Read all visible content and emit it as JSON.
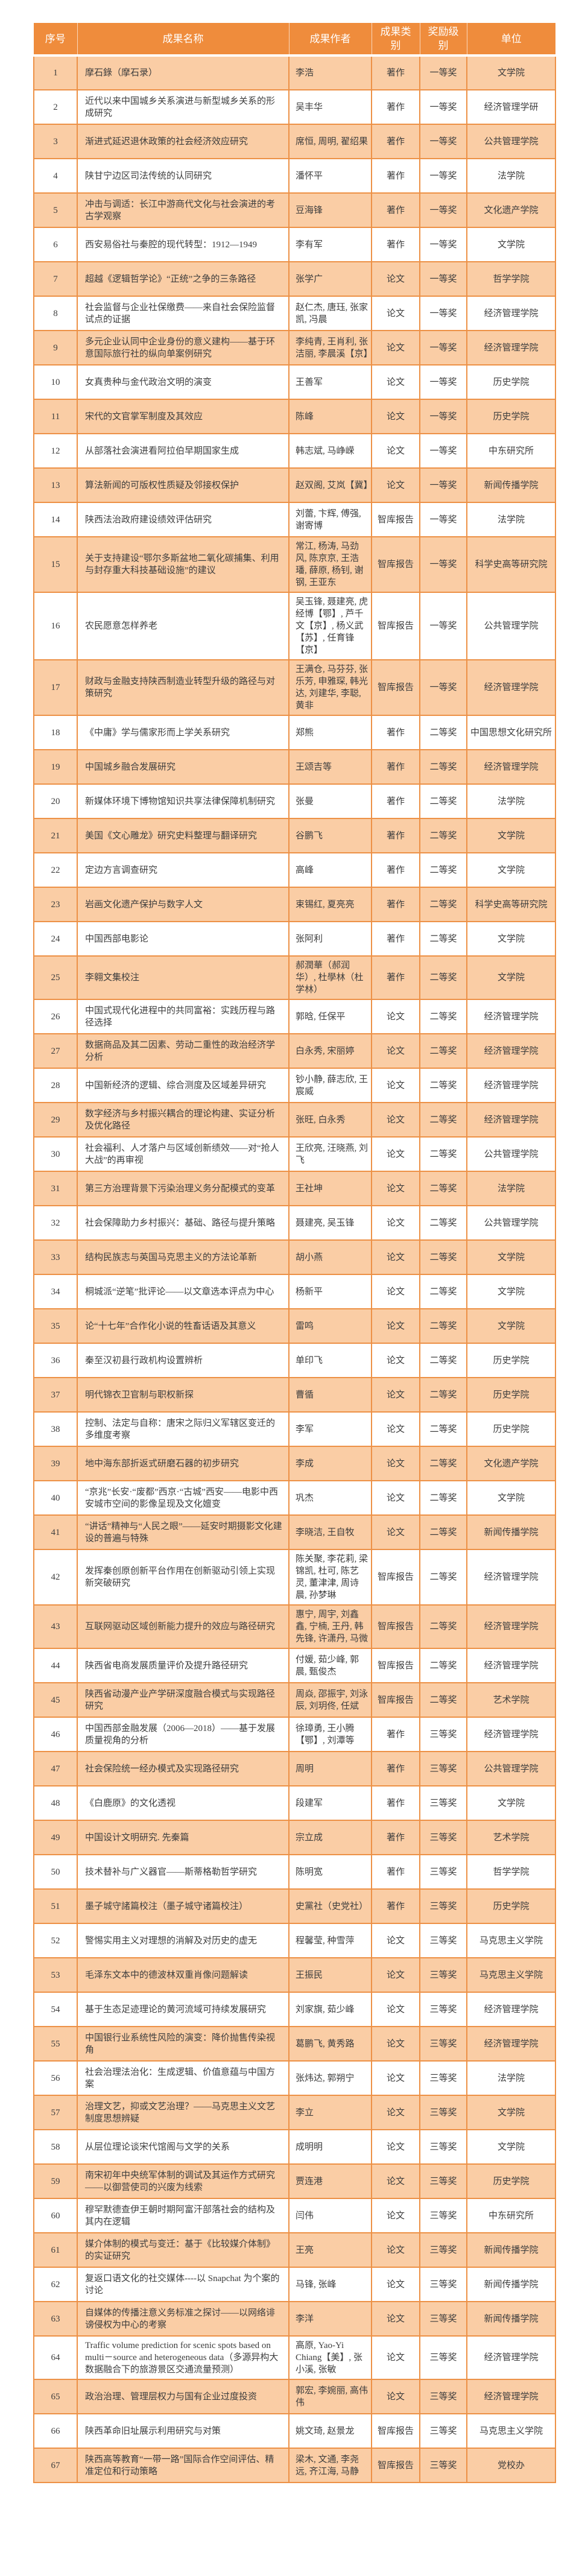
{
  "theme": {
    "header_bg": "#EF8C3C",
    "header_text": "#FFFFFF",
    "row_alt_bg": "#FACDA5",
    "row_bg": "#FFFFFF",
    "border_color": "#ED9146",
    "text_color": "#3D3D3D"
  },
  "table": {
    "columns": [
      "序号",
      "成果名称",
      "成果作者",
      "成果类别",
      "奖励级别",
      "单位"
    ],
    "rows": [
      {
        "no": "1",
        "title": "摩石錄（摩石录）",
        "authors": "李浩",
        "category": "著作",
        "award": "一等奖",
        "unit": "文学院"
      },
      {
        "no": "2",
        "title": "近代以来中国城乡关系演进与新型城乡关系的形成研究",
        "authors": "吴丰华",
        "category": "著作",
        "award": "一等奖",
        "unit": "经济管理学研"
      },
      {
        "no": "3",
        "title": "渐进式延迟退休政策的社会经济效应研究",
        "authors": "席恒, 周明, 翟绍果",
        "category": "著作",
        "award": "一等奖",
        "unit": "公共管理学院"
      },
      {
        "no": "4",
        "title": "陕甘宁边区司法传统的认同研究",
        "authors": "潘怀平",
        "category": "著作",
        "award": "一等奖",
        "unit": "法学院"
      },
      {
        "no": "5",
        "title": "冲击与调适：长江中游商代文化与社会演进的考古学观察",
        "authors": "豆海锋",
        "category": "著作",
        "award": "一等奖",
        "unit": "文化遗产学院"
      },
      {
        "no": "6",
        "title": "西安易俗社与秦腔的现代转型：1912—1949",
        "authors": "李有军",
        "category": "著作",
        "award": "一等奖",
        "unit": "文学院"
      },
      {
        "no": "7",
        "title": "超越《逻辑哲学论》“正统”之争的三条路径",
        "authors": "张学广",
        "category": "论文",
        "award": "一等奖",
        "unit": "哲学学院"
      },
      {
        "no": "8",
        "title": "社会监督与企业社保缴费——来自社会保险监督试点的证据",
        "authors": "赵仁杰, 唐珏, 张家凯, 冯晨",
        "category": "论文",
        "award": "一等奖",
        "unit": "经济管理学院"
      },
      {
        "no": "9",
        "title": "多元企业认同中企业身份的意义建构——基于环意国际旅行社的纵向单案例研究",
        "authors": "李纯青, 王肖利, 张洁丽, 李晨溪【京】",
        "category": "论文",
        "award": "一等奖",
        "unit": "经济管理学院"
      },
      {
        "no": "10",
        "title": "女真贵种与金代政治文明的演变",
        "authors": "王善军",
        "category": "论文",
        "award": "一等奖",
        "unit": "历史学院"
      },
      {
        "no": "11",
        "title": "宋代的文官掌军制度及其效应",
        "authors": "陈峰",
        "category": "论文",
        "award": "一等奖",
        "unit": "历史学院"
      },
      {
        "no": "12",
        "title": "从部落社会演进看阿拉伯早期国家生成",
        "authors": "韩志斌, 马峥嵘",
        "category": "论文",
        "award": "一等奖",
        "unit": "中东研究所"
      },
      {
        "no": "13",
        "title": "算法新闻的可版权性质疑及邻接权保护",
        "authors": "赵双阁, 艾岚【冀】",
        "category": "论文",
        "award": "一等奖",
        "unit": "新闻传播学院"
      },
      {
        "no": "14",
        "title": "陕西法治政府建设绩效评估研究",
        "authors": "刘蕾, 卞辉, 傅强, 谢寄博",
        "category": "智库报告",
        "award": "一等奖",
        "unit": "法学院"
      },
      {
        "no": "15",
        "title": "关于支持建设“鄂尔多斯盆地二氧化碳捕集、利用与封存重大科技基础设施”的建议",
        "authors": "常江, 杨涛, 马劲风, 陈京京, 王浩璠, 薛原, 杨钊, 谢钢, 王亚东",
        "category": "智库报告",
        "award": "一等奖",
        "unit": "科学史高等研究院"
      },
      {
        "no": "16",
        "title": "农民愿意怎样养老",
        "authors": "吴玉锋, 聂建亮, 虎经博【鄂】, 芦千文【京】, 杨义武【苏】, 任育锋【京】",
        "category": "智库报告",
        "award": "一等奖",
        "unit": "公共管理学院"
      },
      {
        "no": "17",
        "title": "财政与金融支持陕西制造业转型升级的路径与对策研究",
        "authors": "王满仓, 马芬芬, 张乐芳, 申雅琛, 韩光达, 刘建华, 李聪, 黄非",
        "category": "智库报告",
        "award": "一等奖",
        "unit": "经济管理学院"
      },
      {
        "no": "18",
        "title": "《中庸》学与儒家形而上学关系研究",
        "authors": "郑熊",
        "category": "著作",
        "award": "二等奖",
        "unit": "中国思想文化研究所"
      },
      {
        "no": "19",
        "title": "中国城乡融合发展研究",
        "authors": "王颂吉等",
        "category": "著作",
        "award": "二等奖",
        "unit": "经济管理学院"
      },
      {
        "no": "20",
        "title": "新媒体环境下博物馆知识共享法律保障机制研究",
        "authors": "张曼",
        "category": "著作",
        "award": "二等奖",
        "unit": "法学院"
      },
      {
        "no": "21",
        "title": "美国《文心雕龙》研究史料整理与翻译研究",
        "authors": "谷鹏飞",
        "category": "著作",
        "award": "二等奖",
        "unit": "文学院"
      },
      {
        "no": "22",
        "title": "定边方言调查研究",
        "authors": "高峰",
        "category": "著作",
        "award": "二等奖",
        "unit": "文学院"
      },
      {
        "no": "23",
        "title": "岩画文化遗产保护与数字人文",
        "authors": "束锡红, 夏亮亮",
        "category": "著作",
        "award": "二等奖",
        "unit": "科学史高等研究院"
      },
      {
        "no": "24",
        "title": "中国西部电影论",
        "authors": "张阿利",
        "category": "著作",
        "award": "二等奖",
        "unit": "文学院"
      },
      {
        "no": "25",
        "title": "李翱文集校注",
        "authors": "郝潤華（郝润华）, 杜學林（杜学林）",
        "category": "著作",
        "award": "二等奖",
        "unit": "文学院"
      },
      {
        "no": "26",
        "title": "中国式现代化进程中的共同富裕：实践历程与路径选择",
        "authors": "郭晗, 任保平",
        "category": "论文",
        "award": "二等奖",
        "unit": "经济管理学院"
      },
      {
        "no": "27",
        "title": "数据商品及其二因素、劳动二重性的政治经济学分析",
        "authors": "白永秀, 宋丽婷",
        "category": "论文",
        "award": "二等奖",
        "unit": "经济管理学院"
      },
      {
        "no": "28",
        "title": "中国新经济的逻辑、综合测度及区域差异研究",
        "authors": "钞小静, 薛志欣, 王宸威",
        "category": "论文",
        "award": "二等奖",
        "unit": "经济管理学院"
      },
      {
        "no": "29",
        "title": "数字经济与乡村振兴耦合的理论构建、实证分析及优化路径",
        "authors": "张旺, 白永秀",
        "category": "论文",
        "award": "二等奖",
        "unit": "经济管理学院"
      },
      {
        "no": "30",
        "title": "社会福利、人才落户与区域创新绩效——对“抢人大战”的再审视",
        "authors": "王欣亮, 汪晓燕, 刘飞",
        "category": "论文",
        "award": "二等奖",
        "unit": "公共管理学院"
      },
      {
        "no": "31",
        "title": "第三方治理背景下污染治理义务分配模式的变革",
        "authors": "王社坤",
        "category": "论文",
        "award": "二等奖",
        "unit": "法学院"
      },
      {
        "no": "32",
        "title": "社会保障助力乡村振兴：基础、路径与提升策略",
        "authors": "聂建亮, 吴玉锋",
        "category": "论文",
        "award": "二等奖",
        "unit": "公共管理学院"
      },
      {
        "no": "33",
        "title": "结构民族志与英国马克思主义的方法论革新",
        "authors": "胡小燕",
        "category": "论文",
        "award": "二等奖",
        "unit": "文学院"
      },
      {
        "no": "34",
        "title": "桐城派“逆笔”批评论——以文章选本评点为中心",
        "authors": "杨新平",
        "category": "论文",
        "award": "二等奖",
        "unit": "文学院"
      },
      {
        "no": "35",
        "title": "论“十七年”合作化小说的牲畜话语及其意义",
        "authors": "雷鸣",
        "category": "论文",
        "award": "二等奖",
        "unit": "文学院"
      },
      {
        "no": "36",
        "title": "秦至汉初县行政机构设置辨析",
        "authors": "单印飞",
        "category": "论文",
        "award": "二等奖",
        "unit": "历史学院"
      },
      {
        "no": "37",
        "title": "明代锦衣卫官制与职权新探",
        "authors": "曹循",
        "category": "论文",
        "award": "二等奖",
        "unit": "历史学院"
      },
      {
        "no": "38",
        "title": "控制、法定与自称：唐宋之际归义军辖区变迁的多维度考察",
        "authors": "李军",
        "category": "论文",
        "award": "二等奖",
        "unit": "历史学院"
      },
      {
        "no": "39",
        "title": "地中海东部折返式研磨石器的初步研究",
        "authors": "李成",
        "category": "论文",
        "award": "二等奖",
        "unit": "文化遗产学院"
      },
      {
        "no": "40",
        "title": "“京兆”长安·“废都”西京·“古城”西安——电影中西安城市空间的影像呈现及文化嬗变",
        "authors": "巩杰",
        "category": "论文",
        "award": "二等奖",
        "unit": "文学院"
      },
      {
        "no": "41",
        "title": "“讲话”精神与“人民之眼”——延安时期摄影文化建设的普遍与特殊",
        "authors": "李晓洁, 王自牧",
        "category": "论文",
        "award": "二等奖",
        "unit": "新闻传播学院"
      },
      {
        "no": "42",
        "title": "发挥秦创原创新平台作用在创新驱动引领上实现新突破研究",
        "authors": "陈关聚, 李花莉, 梁锦凯, 杜可, 陈艺灵, 董津津, 周诗晨, 孙梦琳",
        "category": "智库报告",
        "award": "二等奖",
        "unit": "经济管理学院"
      },
      {
        "no": "43",
        "title": "互联网驱动区域创新能力提升的效应与路径研究",
        "authors": "惠宁, 周宇, 刘鑫鑫, 宁楠, 王丹, 韩先锋, 许潇丹, 马微",
        "category": "智库报告",
        "award": "二等奖",
        "unit": "经济管理学院"
      },
      {
        "no": "44",
        "title": "陕西省电商发展质量评价及提升路径研究",
        "authors": "付媛, 茹少峰, 郭晨, 甄俊杰",
        "category": "智库报告",
        "award": "二等奖",
        "unit": "经济管理学院"
      },
      {
        "no": "45",
        "title": "陕西省动漫产业产学研深度融合模式与实现路径研究",
        "authors": "周焱, 邵振宇, 刘泳辰, 刘玥佟, 任斌",
        "category": "智库报告",
        "award": "二等奖",
        "unit": "艺术学院"
      },
      {
        "no": "46",
        "title": "中国西部金融发展（2006—2018）——基于发展质量视角的分析",
        "authors": "徐璋勇, 王小腾【鄂】, 刘潭等",
        "category": "著作",
        "award": "三等奖",
        "unit": "经济管理学院"
      },
      {
        "no": "47",
        "title": "社会保险统一经办模式及实现路径研究",
        "authors": "周明",
        "category": "著作",
        "award": "三等奖",
        "unit": "公共管理学院"
      },
      {
        "no": "48",
        "title": "《白鹿原》的文化透视",
        "authors": "段建军",
        "category": "著作",
        "award": "三等奖",
        "unit": "文学院"
      },
      {
        "no": "49",
        "title": "中国设计文明研究. 先秦篇",
        "authors": "宗立成",
        "category": "著作",
        "award": "三等奖",
        "unit": "艺术学院"
      },
      {
        "no": "50",
        "title": "技术替补与广义器官——斯蒂格勒哲学研究",
        "authors": "陈明宽",
        "category": "著作",
        "award": "三等奖",
        "unit": "哲学学院"
      },
      {
        "no": "51",
        "title": "墨子城守諸篇校注（墨子城守诸篇校注）",
        "authors": "史黨社（史党社）",
        "category": "著作",
        "award": "三等奖",
        "unit": "历史学院"
      },
      {
        "no": "52",
        "title": "警惕实用主义对理想的消解及对历史的虚无",
        "authors": "程馨莹, 种雪萍",
        "category": "论文",
        "award": "三等奖",
        "unit": "马克思主义学院"
      },
      {
        "no": "53",
        "title": "毛泽东文本中的德波林双重肖像问题解读",
        "authors": "王振民",
        "category": "论文",
        "award": "三等奖",
        "unit": "马克思主义学院"
      },
      {
        "no": "54",
        "title": "基于生态足迹理论的黄河流域可持续发展研究",
        "authors": "刘家旗, 茹少峰",
        "category": "论文",
        "award": "三等奖",
        "unit": "经济管理学院"
      },
      {
        "no": "55",
        "title": "中国银行业系统性风险的演变：降价抛售传染视角",
        "authors": "葛鹏飞, 黄秀路",
        "category": "论文",
        "award": "三等奖",
        "unit": "经济管理学院"
      },
      {
        "no": "56",
        "title": "社会治理法治化：生成逻辑、价值意蕴与中国方案",
        "authors": "张炜达, 郭朔宁",
        "category": "论文",
        "award": "三等奖",
        "unit": "法学院"
      },
      {
        "no": "57",
        "title": "治理文艺，抑或文艺治理？——马克思主义文艺制度思想辨疑",
        "authors": "李立",
        "category": "论文",
        "award": "三等奖",
        "unit": "文学院"
      },
      {
        "no": "58",
        "title": "从层位理论谈宋代馆阁与文学的关系",
        "authors": "成明明",
        "category": "论文",
        "award": "三等奖",
        "unit": "文学院"
      },
      {
        "no": "59",
        "title": "南宋初年中央统军体制的调试及其运作方式研究——以御营使司的兴废为线索",
        "authors": "贾连港",
        "category": "论文",
        "award": "三等奖",
        "unit": "历史学院"
      },
      {
        "no": "60",
        "title": "穆罕默德查伊王朝时期阿富汗部落社会的结构及其内在逻辑",
        "authors": "闫伟",
        "category": "论文",
        "award": "三等奖",
        "unit": "中东研究所"
      },
      {
        "no": "61",
        "title": "媒介体制的模式与变迁：基于《比较媒介体制》的实证研究",
        "authors": "王亮",
        "category": "论文",
        "award": "三等奖",
        "unit": "新闻传播学院"
      },
      {
        "no": "62",
        "title": "复返口语文化的社交媒体----以 Snapchat 为个案的讨论",
        "authors": "马锋, 张峰",
        "category": "论文",
        "award": "三等奖",
        "unit": "新闻传播学院"
      },
      {
        "no": "63",
        "title": "自媒体的传播注意义务标准之探讨——以网络诽谤侵权为中心的考察",
        "authors": "李洋",
        "category": "论文",
        "award": "三等奖",
        "unit": "新闻传播学院"
      },
      {
        "no": "64",
        "title": "Traffic volume prediction for scenic spots based on multi－source and heterogeneous data（多源异构大数据融合下的旅游景区交通流量预测）",
        "authors": "高原, Yao-Yi Chiang【美】, 张小溪, 张敏",
        "category": "论文",
        "award": "三等奖",
        "unit": "经济管理学院"
      },
      {
        "no": "65",
        "title": "政治治理、管理层权力与国有企业过度投资",
        "authors": "郭宏, 李婉丽, 高伟伟",
        "category": "论文",
        "award": "三等奖",
        "unit": "经济管理学院"
      },
      {
        "no": "66",
        "title": "陕西革命旧址展示利用研究与对策",
        "authors": "姚文琦, 赵景龙",
        "category": "智库报告",
        "award": "三等奖",
        "unit": "马克思主义学院"
      },
      {
        "no": "67",
        "title": "陕西高等教育“一带一路”国际合作空间评估、精准定位和行动策略",
        "authors": "梁木, 文通, 李尧远, 齐江海, 马静",
        "category": "智库报告",
        "award": "三等奖",
        "unit": "党校办"
      }
    ]
  }
}
